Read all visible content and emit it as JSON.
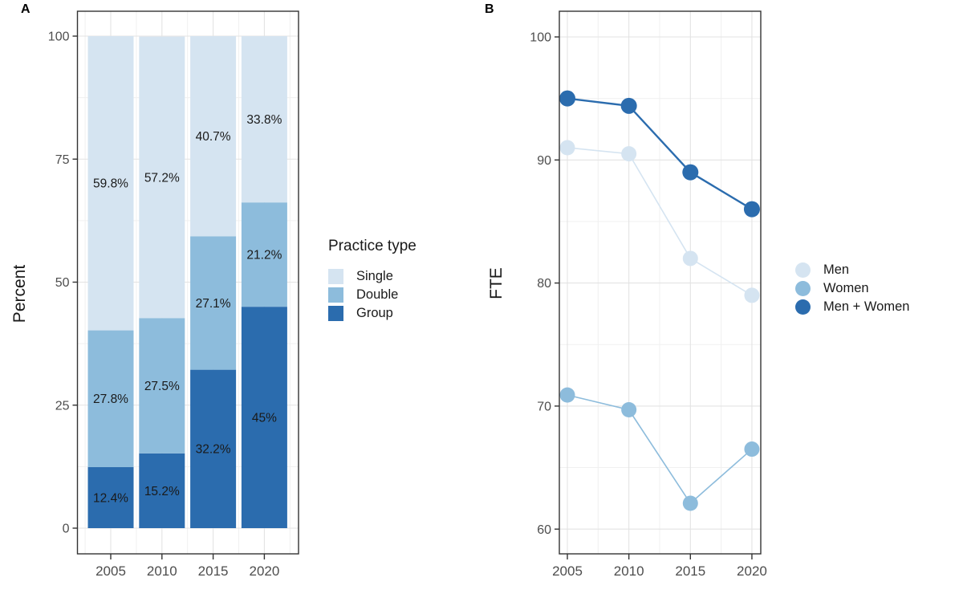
{
  "figure": {
    "panel_a_label": "A",
    "panel_b_label": "B"
  },
  "colors": {
    "single": "#d5e4f1",
    "double": "#8dbcdc",
    "group": "#2b6cae",
    "men": "#d5e4f1",
    "women": "#8dbcdc",
    "men_women": "#2b6cae",
    "grid_major": "#e3e3e3",
    "grid_minor": "#f0f0f0",
    "axis_text": "#4d4d4d",
    "axis_title": "#1a1a1a",
    "tick_mark": "#333333",
    "panel_border": "#333333",
    "bar_label_text": "#1a1a1a"
  },
  "chart_data": [
    {
      "id": "A",
      "type": "bar",
      "stacked": true,
      "categories": [
        "2005",
        "2010",
        "2015",
        "2020"
      ],
      "series": [
        {
          "name": "Single",
          "color_key": "single",
          "values": [
            59.8,
            57.2,
            40.7,
            33.8
          ],
          "labels": [
            "59.8%",
            "57.2%",
            "40.7%",
            "33.8%"
          ]
        },
        {
          "name": "Double",
          "color_key": "double",
          "values": [
            27.8,
            27.5,
            27.1,
            21.2
          ],
          "labels": [
            "27.8%",
            "27.5%",
            "27.1%",
            "21.2%"
          ]
        },
        {
          "name": "Group",
          "color_key": "group",
          "values": [
            12.4,
            15.2,
            32.2,
            45
          ],
          "labels": [
            "12.4%",
            "15.2%",
            "32.2%",
            "45%"
          ]
        }
      ],
      "ylabel": "Percent",
      "ylim": [
        0,
        100
      ],
      "yticks": [
        0,
        25,
        50,
        75,
        100
      ],
      "yticks_minor": [
        12.5,
        37.5,
        62.5,
        87.5
      ],
      "grid": true,
      "legend": {
        "title": "Practice type",
        "position": "right"
      }
    },
    {
      "id": "B",
      "type": "line",
      "x": [
        2005,
        2010,
        2015,
        2020
      ],
      "xtick_labels": [
        "2005",
        "2010",
        "2015",
        "2020"
      ],
      "xticks_minor": [
        2007.5,
        2012.5,
        2017.5
      ],
      "series": [
        {
          "name": "Men",
          "color_key": "men",
          "values": [
            91,
            90.5,
            82,
            79
          ]
        },
        {
          "name": "Women",
          "color_key": "women",
          "values": [
            70.9,
            69.7,
            62.1,
            66.5
          ]
        },
        {
          "name": "Men + Women",
          "color_key": "men_women",
          "values": [
            95,
            94.4,
            89,
            86
          ]
        }
      ],
      "ylabel": "FTE",
      "ylim": [
        58,
        102
      ],
      "yticks": [
        60,
        70,
        80,
        90,
        100
      ],
      "yticks_minor": [
        65,
        75,
        85,
        95
      ],
      "grid": true,
      "legend": {
        "title": "",
        "position": "right"
      }
    }
  ]
}
